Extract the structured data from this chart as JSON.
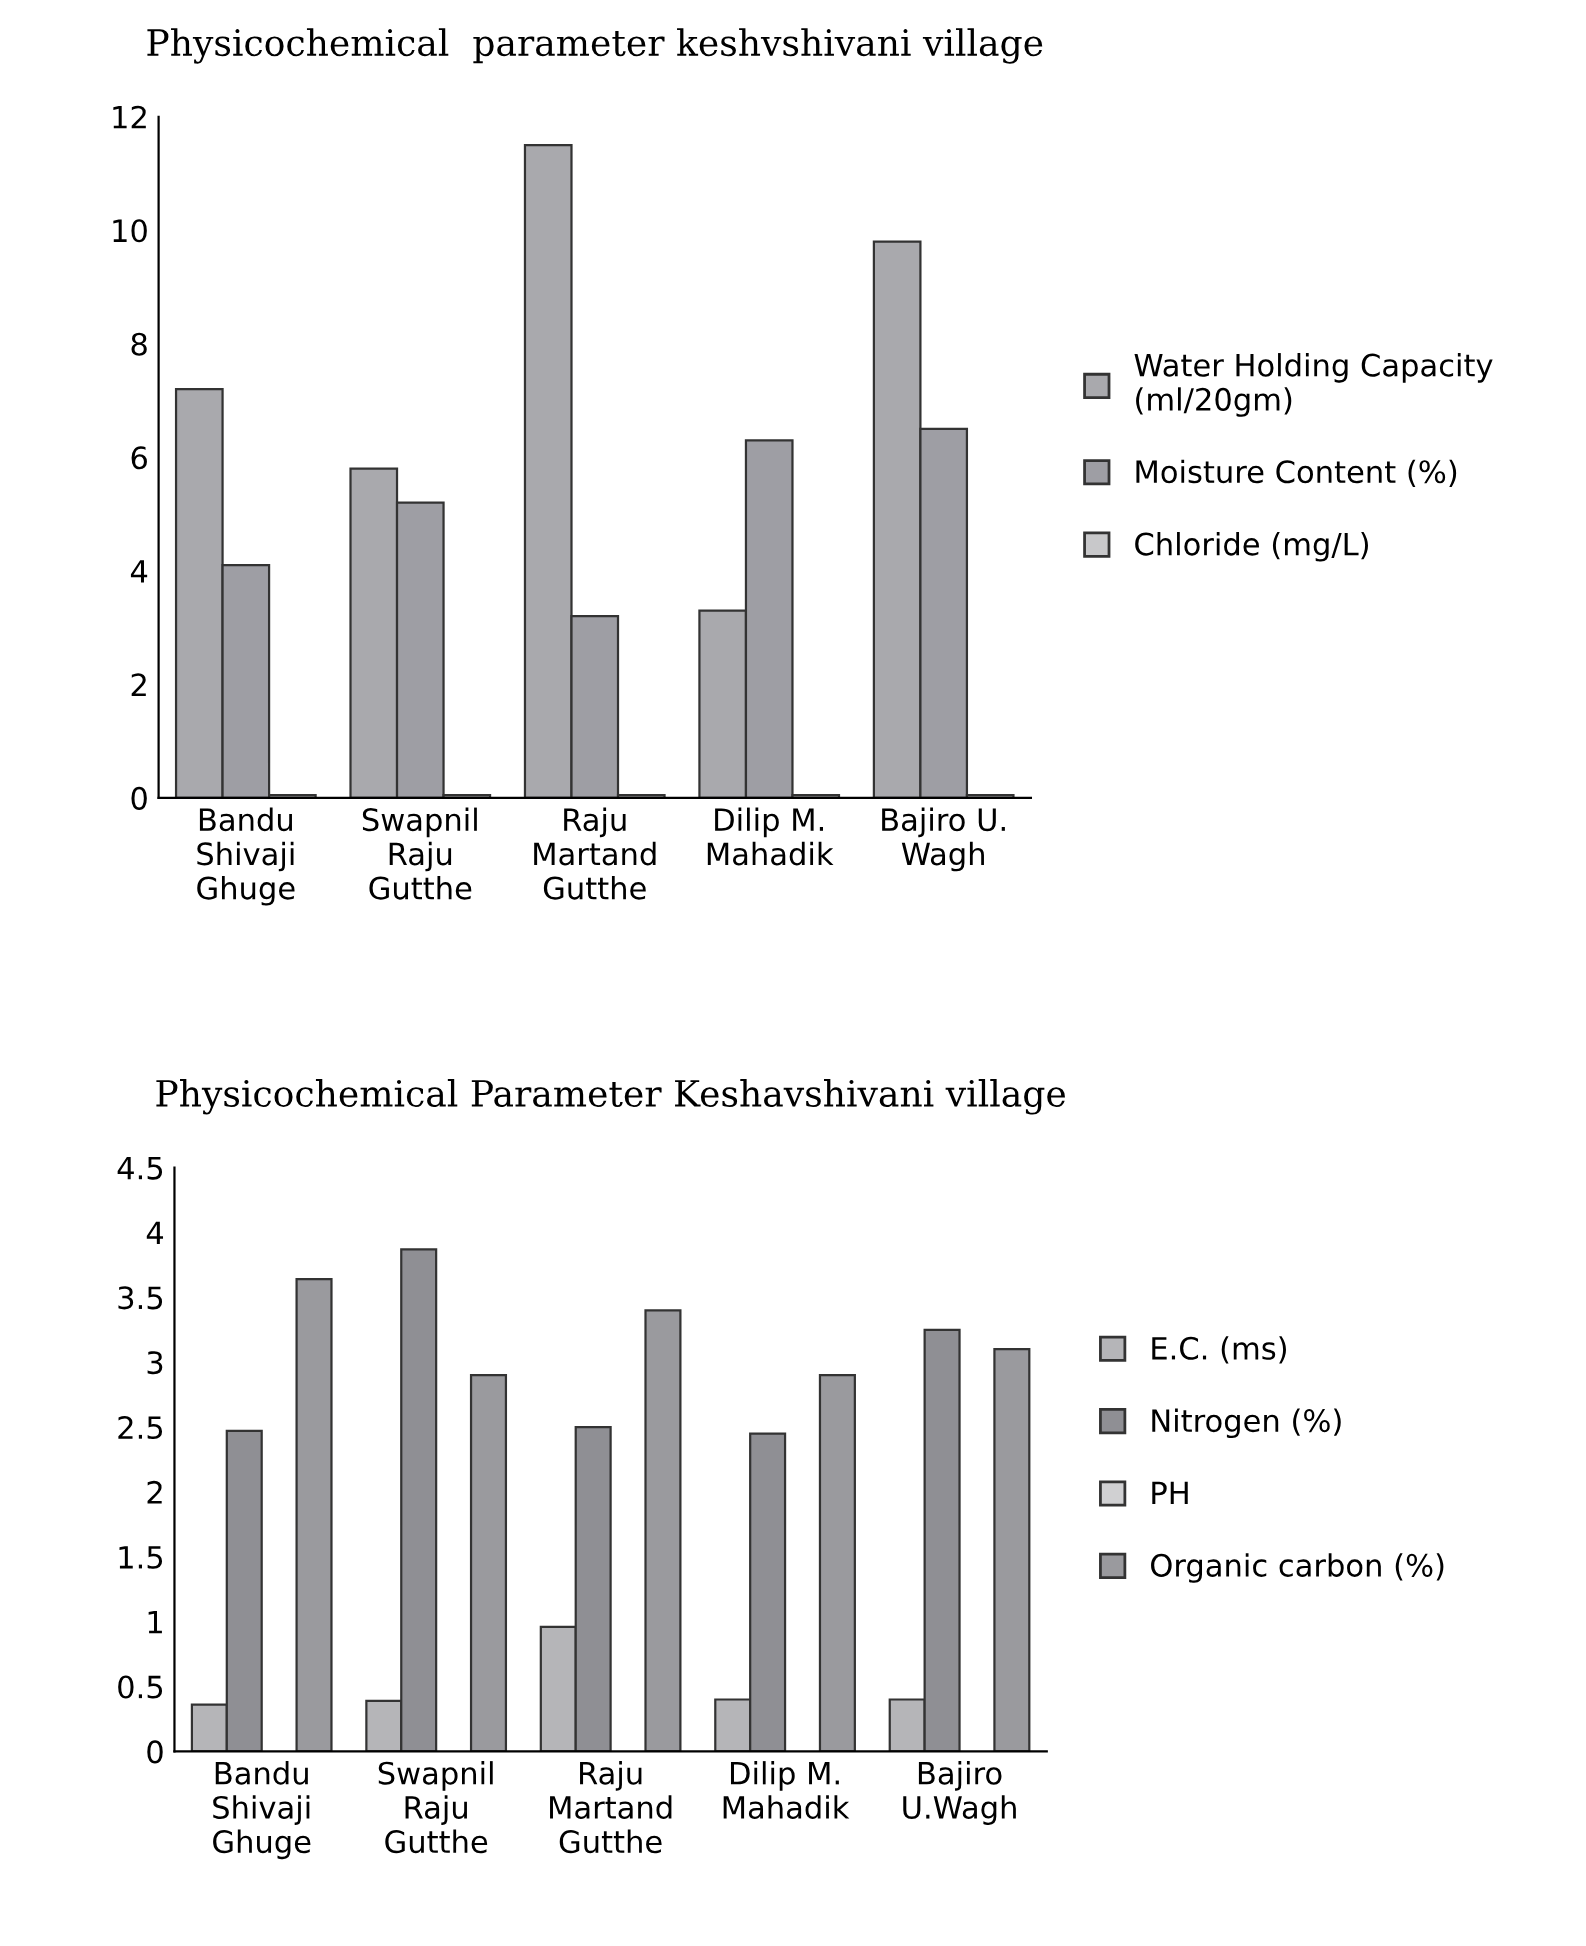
{
  "chart_data": [
    {
      "type": "bar",
      "title": "Physicochemical  parameter keshvshivani village",
      "categories": [
        "Bandu\nShivaji\nGhuge",
        "Swapnil\nRaju\nGutthe",
        "Raju\nMartand\nGutthe",
        "Dilip M.\nMahadik",
        "Bajiro U.\nWagh"
      ],
      "series": [
        {
          "name": "Water Holding Capacity\n(ml/20gm)",
          "color": "#a9a9ad",
          "values": [
            7.2,
            5.8,
            11.5,
            3.3,
            9.8
          ]
        },
        {
          "name": "Moisture Content (%)",
          "color": "#9e9ea4",
          "values": [
            4.1,
            5.2,
            3.2,
            6.3,
            6.5
          ]
        },
        {
          "name": "Chloride (mg/L)",
          "color": "#c8c8ca",
          "values": [
            0.05,
            0.05,
            0.05,
            0.05,
            0.05
          ]
        }
      ],
      "ylim": [
        0,
        12
      ],
      "yticks": [
        0,
        2,
        4,
        6,
        8,
        10,
        12
      ],
      "grid": false,
      "legend": "right"
    },
    {
      "type": "bar",
      "title": "Physicochemical Parameter Keshavshivani village",
      "categories": [
        "Bandu\nShivaji\nGhuge",
        "Swapnil\nRaju\nGutthe",
        "Raju\nMartand\nGutthe",
        "Dilip M.\nMahadik",
        "Bajiro\nU.Wagh"
      ],
      "series": [
        {
          "name": "E.C. (ms)",
          "color": "#b5b5b8",
          "values": [
            0.36,
            0.39,
            0.96,
            0.4,
            0.4
          ]
        },
        {
          "name": "Nitrogen (%)",
          "color": "#8f8f94",
          "values": [
            2.47,
            3.87,
            2.5,
            2.45,
            3.25
          ]
        },
        {
          "name": "PH",
          "color": "#d0d0d2",
          "values": [
            null,
            null,
            null,
            null,
            null
          ]
        },
        {
          "name": "Organic carbon (%)",
          "color": "#9a9a9e",
          "values": [
            3.64,
            2.9,
            3.4,
            2.9,
            3.1
          ]
        }
      ],
      "ylim": [
        0,
        4.5
      ],
      "yticks": [
        0,
        0.5,
        1,
        1.5,
        2,
        2.5,
        3,
        3.5,
        4,
        4.5
      ],
      "grid": false,
      "legend": "right"
    }
  ]
}
